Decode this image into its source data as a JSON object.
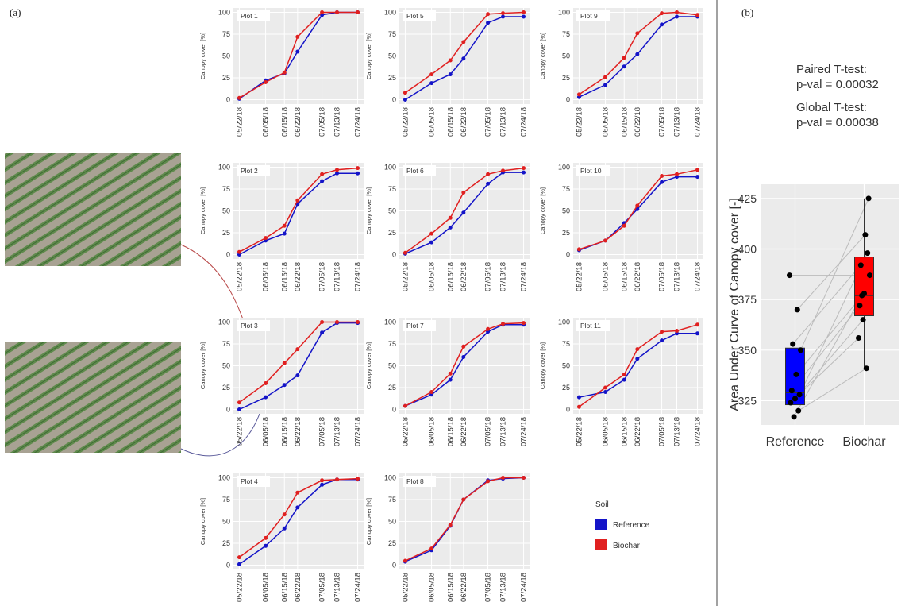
{
  "panel_labels": [
    "(a)",
    "(b)"
  ],
  "chart_data": [
    {
      "type": "line",
      "title": "Plot 1",
      "y_label": "Canopy cover [%]",
      "legend_title": "Soil",
      "x": [
        "05/22/18",
        "06/05/18",
        "06/15/18",
        "06/22/18",
        "07/05/18",
        "07/13/18",
        "07/24/18"
      ],
      "ylim": [
        -5,
        105
      ],
      "yticks": [
        0,
        25,
        50,
        75,
        100
      ],
      "series": [
        {
          "name": "Reference",
          "color": "#1414c8",
          "values": [
            1,
            22,
            30,
            55,
            97,
            100,
            100
          ]
        },
        {
          "name": "Biochar",
          "color": "#e02020",
          "values": [
            2,
            20,
            31,
            72,
            100,
            100,
            100
          ]
        }
      ]
    },
    {
      "type": "line",
      "title": "Plot 2",
      "y_label": "Canopy cover [%]",
      "x": [
        "05/22/18",
        "06/05/18",
        "06/15/18",
        "06/22/18",
        "07/05/18",
        "07/13/18",
        "07/24/18"
      ],
      "ylim": [
        -5,
        105
      ],
      "yticks": [
        0,
        25,
        50,
        75,
        100
      ],
      "series": [
        {
          "color": "#1414c8",
          "values": [
            0,
            16,
            24,
            58,
            84,
            93,
            93
          ]
        },
        {
          "color": "#e02020",
          "values": [
            3,
            19,
            33,
            62,
            92,
            97,
            99
          ]
        }
      ]
    },
    {
      "type": "line",
      "title": "Plot 3",
      "y_label": "Canopy cover [%]",
      "x": [
        "05/22/18",
        "06/05/18",
        "06/15/18",
        "06/22/18",
        "07/05/18",
        "07/13/18",
        "07/24/18"
      ],
      "ylim": [
        -5,
        105
      ],
      "yticks": [
        0,
        25,
        50,
        75,
        100
      ],
      "series": [
        {
          "color": "#1414c8",
          "values": [
            0,
            14,
            28,
            39,
            88,
            99,
            99
          ]
        },
        {
          "color": "#e02020",
          "values": [
            8,
            30,
            53,
            69,
            100,
            100,
            100
          ]
        }
      ]
    },
    {
      "type": "line",
      "title": "Plot 4",
      "y_label": "Canopy cover [%]",
      "x": [
        "05/22/18",
        "06/05/18",
        "06/15/18",
        "06/22/18",
        "07/05/18",
        "07/13/18",
        "07/24/18"
      ],
      "ylim": [
        -5,
        105
      ],
      "yticks": [
        0,
        25,
        50,
        75,
        100
      ],
      "series": [
        {
          "color": "#1414c8",
          "values": [
            1,
            22,
            42,
            66,
            92,
            98,
            98
          ]
        },
        {
          "color": "#e02020",
          "values": [
            9,
            31,
            58,
            83,
            97,
            98,
            99
          ]
        }
      ]
    },
    {
      "type": "line",
      "title": "Plot 5",
      "y_label": "Canopy cover [%]",
      "x": [
        "05/22/18",
        "06/05/18",
        "06/15/18",
        "06/22/18",
        "07/05/18",
        "07/13/18",
        "07/24/18"
      ],
      "ylim": [
        -5,
        105
      ],
      "yticks": [
        0,
        25,
        50,
        75,
        100
      ],
      "series": [
        {
          "color": "#1414c8",
          "values": [
            0,
            19,
            29,
            47,
            88,
            95,
            95
          ]
        },
        {
          "color": "#e02020",
          "values": [
            8,
            29,
            45,
            66,
            98,
            99,
            100
          ]
        }
      ]
    },
    {
      "type": "line",
      "title": "Plot 6",
      "y_label": "Canopy cover [%]",
      "x": [
        "05/22/18",
        "06/05/18",
        "06/15/18",
        "06/22/18",
        "07/05/18",
        "07/13/18",
        "07/24/18"
      ],
      "ylim": [
        -5,
        105
      ],
      "yticks": [
        0,
        25,
        50,
        75,
        100
      ],
      "series": [
        {
          "color": "#1414c8",
          "values": [
            1,
            14,
            31,
            48,
            81,
            94,
            94
          ]
        },
        {
          "color": "#e02020",
          "values": [
            2,
            24,
            42,
            71,
            92,
            96,
            99
          ]
        }
      ]
    },
    {
      "type": "line",
      "title": "Plot 7",
      "y_label": "Canopy cover [%]",
      "x": [
        "05/22/18",
        "06/05/18",
        "06/15/18",
        "06/22/18",
        "07/05/18",
        "07/13/18",
        "07/24/18"
      ],
      "ylim": [
        -5,
        105
      ],
      "yticks": [
        0,
        25,
        50,
        75,
        100
      ],
      "series": [
        {
          "color": "#1414c8",
          "values": [
            4,
            17,
            34,
            60,
            89,
            97,
            97
          ]
        },
        {
          "color": "#e02020",
          "values": [
            4,
            20,
            41,
            72,
            92,
            98,
            99
          ]
        }
      ]
    },
    {
      "type": "line",
      "title": "Plot 8",
      "y_label": "Canopy cover [%]",
      "x": [
        "05/22/18",
        "06/05/18",
        "06/15/18",
        "06/22/18",
        "07/05/18",
        "07/13/18",
        "07/24/18"
      ],
      "ylim": [
        -5,
        105
      ],
      "yticks": [
        0,
        25,
        50,
        75,
        100
      ],
      "series": [
        {
          "color": "#1414c8",
          "values": [
            4,
            17,
            45,
            75,
            97,
            99,
            100
          ]
        },
        {
          "color": "#e02020",
          "values": [
            5,
            19,
            46,
            75,
            96,
            100,
            100
          ]
        }
      ]
    },
    {
      "type": "line",
      "title": "Plot 9",
      "y_label": "Canopy cover [%]",
      "x": [
        "05/22/18",
        "06/05/18",
        "06/15/18",
        "06/22/18",
        "07/05/18",
        "07/13/18",
        "07/24/18"
      ],
      "ylim": [
        -5,
        105
      ],
      "yticks": [
        0,
        25,
        50,
        75,
        100
      ],
      "series": [
        {
          "color": "#1414c8",
          "values": [
            3,
            17,
            38,
            52,
            86,
            95,
            95
          ]
        },
        {
          "color": "#e02020",
          "values": [
            6,
            26,
            48,
            76,
            99,
            100,
            97
          ]
        }
      ]
    },
    {
      "type": "line",
      "title": "Plot 10",
      "y_label": "Canopy cover [%]",
      "x": [
        "05/22/18",
        "06/05/18",
        "06/15/18",
        "06/22/18",
        "07/05/18",
        "07/13/18",
        "07/24/18"
      ],
      "ylim": [
        -5,
        105
      ],
      "yticks": [
        0,
        25,
        50,
        75,
        100
      ],
      "series": [
        {
          "color": "#1414c8",
          "values": [
            5,
            16,
            36,
            52,
            83,
            89,
            89
          ]
        },
        {
          "color": "#e02020",
          "values": [
            6,
            16,
            33,
            56,
            90,
            92,
            97
          ]
        }
      ]
    },
    {
      "type": "line",
      "title": "Plot 11",
      "y_label": "Canopy cover [%]",
      "x": [
        "05/22/18",
        "06/05/18",
        "06/15/18",
        "06/22/18",
        "07/05/18",
        "07/13/18",
        "07/24/18"
      ],
      "ylim": [
        -5,
        105
      ],
      "yticks": [
        0,
        25,
        50,
        75,
        100
      ],
      "series": [
        {
          "color": "#1414c8",
          "values": [
            14,
            20,
            34,
            58,
            79,
            87,
            87
          ]
        },
        {
          "color": "#e02020",
          "values": [
            3,
            25,
            40,
            69,
            89,
            90,
            97
          ]
        }
      ]
    },
    {
      "type": "box",
      "y_label": "Area Under Curve of Canopy cover [-]",
      "annotations": [
        "Paired T-test:",
        "p-val = 0.00032",
        "Global T-test:",
        "p-val = 0.00038"
      ],
      "categories": [
        "Reference",
        "Biochar"
      ],
      "ylim": [
        313,
        432
      ],
      "yticks": [
        325,
        350,
        375,
        400,
        425
      ],
      "boxes": [
        {
          "color": "#0000ff",
          "min": 317,
          "q1": 323,
          "median": 329,
          "q3": 351,
          "max": 387,
          "points": [
            387,
            370,
            353,
            350,
            338,
            330,
            328,
            326,
            324,
            320,
            317
          ]
        },
        {
          "color": "#ff0000",
          "min": 341,
          "q1": 367,
          "median": 377,
          "q3": 396,
          "max": 425,
          "points": [
            387,
            407,
            392,
            425,
            378,
            372,
            398,
            365,
            356,
            341,
            377
          ]
        }
      ]
    }
  ]
}
